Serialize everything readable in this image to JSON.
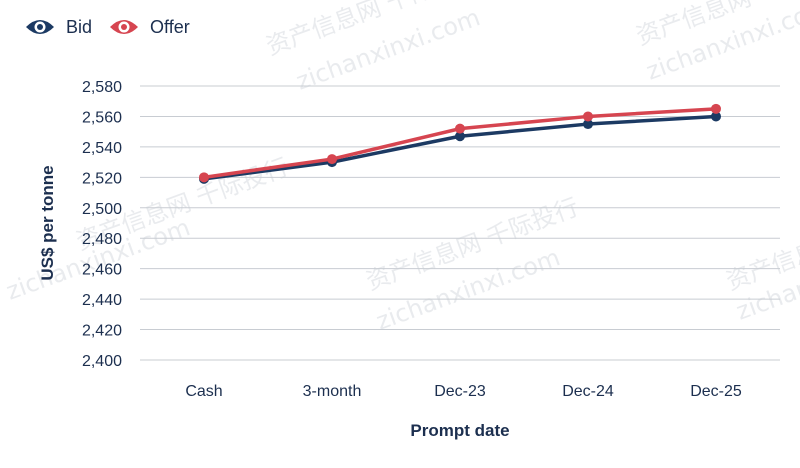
{
  "legend": {
    "bid_label": "Bid",
    "offer_label": "Offer",
    "bid_icon": "eye-icon",
    "offer_icon": "eye-icon"
  },
  "colors": {
    "bid": "#1c3a63",
    "offer": "#d64550",
    "grid": "#c8ccd2",
    "text": "#1c2f4f"
  },
  "watermark_text": [
    "资产信息网 千际投行",
    "zichanxinxi.com"
  ],
  "chart_data": {
    "type": "line",
    "categories": [
      "Cash",
      "3-month",
      "Dec-23",
      "Dec-24",
      "Dec-25"
    ],
    "series": [
      {
        "name": "Bid",
        "color": "#1c3a63",
        "values": [
          2519,
          2530,
          2547,
          2555,
          2560
        ]
      },
      {
        "name": "Offer",
        "color": "#d64550",
        "values": [
          2520,
          2532,
          2552,
          2560,
          2565
        ]
      }
    ],
    "ylim": [
      2400,
      2580
    ],
    "yticks": [
      2400,
      2420,
      2440,
      2460,
      2480,
      2500,
      2520,
      2540,
      2560,
      2580
    ],
    "ytick_labels": [
      "2,400",
      "2,420",
      "2,440",
      "2,460",
      "2,480",
      "2,500",
      "2,520",
      "2,540",
      "2,560",
      "2,580"
    ],
    "xlabel": "Prompt date",
    "ylabel": "US$ per tonne",
    "grid": true,
    "legend_position": "top-left"
  }
}
